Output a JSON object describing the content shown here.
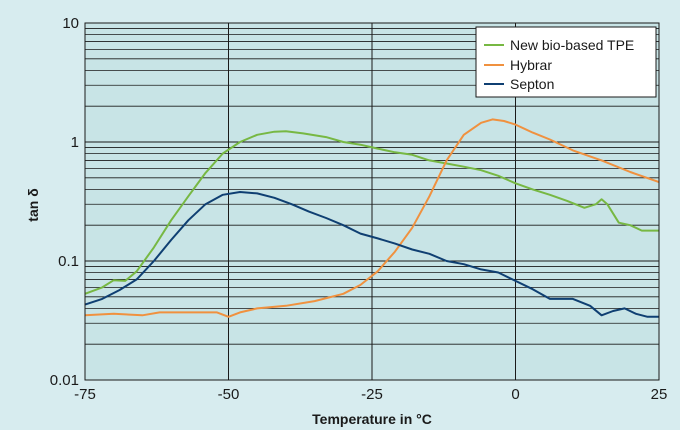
{
  "chart_data": {
    "type": "line",
    "xlabel": "Temperature in °C",
    "ylabel": "tan δ",
    "xlim": [
      -75,
      25
    ],
    "ylim": [
      0.01,
      10
    ],
    "yscale": "log",
    "x_ticks": [
      -75,
      -50,
      -25,
      0,
      25
    ],
    "x_tick_labels": [
      "-75",
      "-50",
      "-25",
      "0",
      "25"
    ],
    "y_ticks": [
      0.01,
      0.1,
      1,
      10
    ],
    "y_tick_labels": [
      "0.01",
      "0.1",
      "1",
      "10"
    ],
    "grid": true,
    "legend_position": "top-right",
    "plot_background": "#c8e4e6",
    "series": [
      {
        "name": "New bio-based TPE",
        "color": "#77b843",
        "x": [
          -75,
          -72,
          -70,
          -68,
          -66,
          -63,
          -60,
          -57,
          -54,
          -51,
          -48,
          -45,
          -42,
          -40,
          -37,
          -33,
          -30,
          -27,
          -24,
          -21,
          -18,
          -15,
          -12,
          -9,
          -6,
          -3,
          0,
          3,
          6,
          9,
          12,
          14,
          15,
          16,
          18,
          20,
          22,
          25
        ],
        "y": [
          0.053,
          0.06,
          0.069,
          0.068,
          0.082,
          0.13,
          0.22,
          0.35,
          0.55,
          0.8,
          1.0,
          1.15,
          1.22,
          1.23,
          1.18,
          1.1,
          1.0,
          0.95,
          0.88,
          0.82,
          0.78,
          0.7,
          0.66,
          0.62,
          0.58,
          0.52,
          0.45,
          0.4,
          0.36,
          0.32,
          0.28,
          0.3,
          0.33,
          0.3,
          0.21,
          0.2,
          0.18,
          0.18
        ]
      },
      {
        "name": "Hybrar",
        "color": "#f0913f",
        "x": [
          -75,
          -70,
          -65,
          -62,
          -58,
          -52,
          -50,
          -48,
          -45,
          -40,
          -35,
          -30,
          -27,
          -24,
          -21,
          -18,
          -15,
          -12,
          -9,
          -6,
          -4,
          -2,
          0,
          3,
          6,
          10,
          15,
          20,
          25
        ],
        "y": [
          0.035,
          0.036,
          0.035,
          0.037,
          0.037,
          0.037,
          0.034,
          0.037,
          0.04,
          0.042,
          0.046,
          0.053,
          0.063,
          0.082,
          0.12,
          0.19,
          0.35,
          0.7,
          1.15,
          1.45,
          1.55,
          1.5,
          1.4,
          1.2,
          1.05,
          0.85,
          0.7,
          0.56,
          0.46
        ]
      },
      {
        "name": "Septon",
        "color": "#0f3f72",
        "x": [
          -75,
          -72,
          -69,
          -66,
          -63,
          -60,
          -57,
          -54,
          -51,
          -48,
          -45,
          -42,
          -39,
          -36,
          -33,
          -30,
          -27,
          -24,
          -21,
          -18,
          -15,
          -12,
          -9,
          -6,
          -3,
          0,
          3,
          6,
          10,
          13,
          15,
          17,
          19,
          21,
          23,
          25
        ],
        "y": [
          0.043,
          0.048,
          0.057,
          0.07,
          0.1,
          0.15,
          0.22,
          0.3,
          0.36,
          0.38,
          0.37,
          0.34,
          0.3,
          0.26,
          0.23,
          0.2,
          0.17,
          0.155,
          0.14,
          0.125,
          0.115,
          0.1,
          0.094,
          0.085,
          0.08,
          0.068,
          0.058,
          0.048,
          0.048,
          0.042,
          0.035,
          0.038,
          0.04,
          0.036,
          0.034,
          0.034
        ]
      }
    ]
  }
}
